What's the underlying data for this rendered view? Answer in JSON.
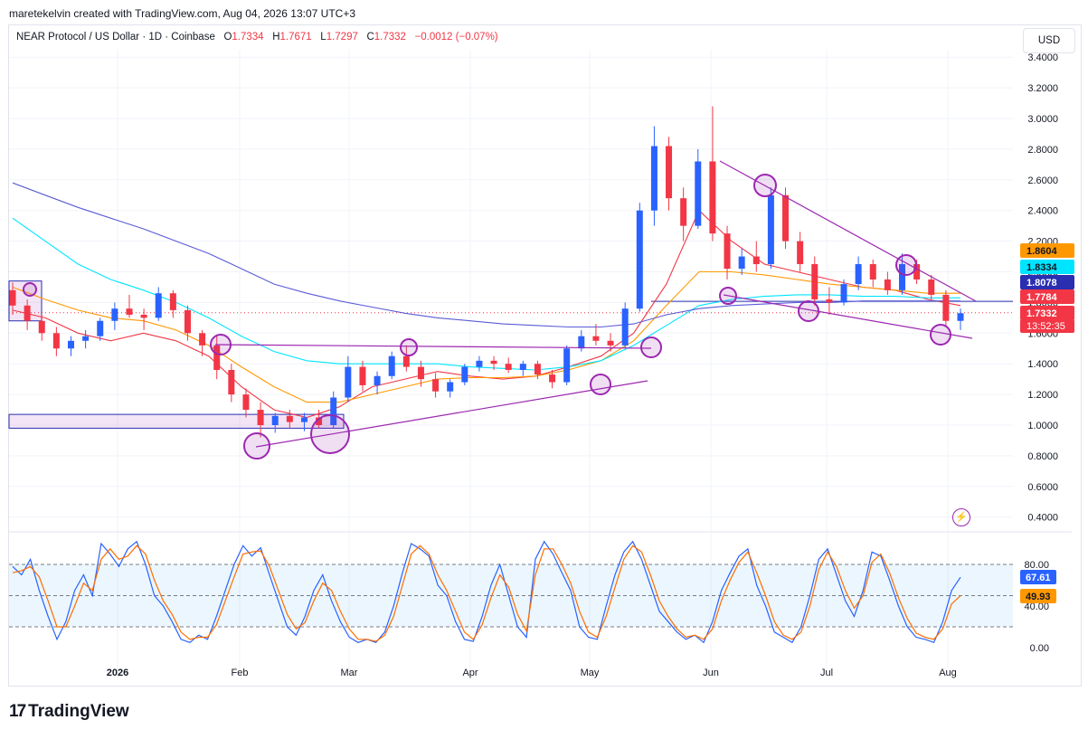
{
  "header": {
    "text": "maretekelvin created with TradingView.com, Aug 04, 2026 13:07 UTC+3"
  },
  "legend": {
    "symbol": "NEAR Protocol / US Dollar · 1D · Coinbase",
    "open_label": "O",
    "open": "1.7334",
    "high_label": "H",
    "high": "1.7671",
    "low_label": "L",
    "low": "1.7297",
    "close_label": "C",
    "close": "1.7332",
    "change": "−0.0012 (−0.07%)"
  },
  "currency_button": "USD",
  "brand": {
    "name": "TradingView",
    "mark": "17"
  },
  "icons": {
    "alert": "lightning-icon",
    "logo": "tradingview-logo-icon"
  },
  "colors": {
    "up": "#2962ff",
    "down": "#f23645",
    "ema_short": "#f23645",
    "ema_mid": "#ff9800",
    "ema_long1": "#00e5ff",
    "ema_long2": "#5b5bd6",
    "annotation": "#9c27b0",
    "stoch_k": "#2962ff",
    "stoch_d": "#ff6d00"
  },
  "chart_data": [
    {
      "type": "candlestick",
      "title": "NEAR Protocol / US Dollar · 1D · Coinbase",
      "y_axis_side": "right",
      "ylim": [
        0.3,
        3.5
      ],
      "y_ticks": [
        "3.4000",
        "3.2000",
        "3.0000",
        "2.8000",
        "2.6000",
        "2.4000",
        "2.2000",
        "2.0000",
        "1.8000",
        "1.6000",
        "1.4000",
        "1.2000",
        "1.0000",
        "0.8000",
        "0.6000",
        "0.4000"
      ],
      "x_ticks": [
        "2026",
        "Feb",
        "Mar",
        "Apr",
        "May",
        "Jun",
        "Jul",
        "Aug"
      ],
      "grid": true,
      "price_labels": [
        {
          "value": "1.8604",
          "color": "#ff9800",
          "text_color": "#131722"
        },
        {
          "value": "1.8334",
          "color": "#00e5ff",
          "text_color": "#131722"
        },
        {
          "value": "1.8078",
          "color": "#2a2eb0",
          "text_color": "#ffffff"
        },
        {
          "value": "1.7784",
          "color": "#f23645",
          "text_color": "#ffffff"
        },
        {
          "value": "1.7332",
          "color": "#f23645",
          "text_color": "#ffffff"
        }
      ],
      "countdown": "13:52:35",
      "key_levels": {
        "support_zone_low": 0.98,
        "support_zone_high": 1.07,
        "resistance_line": 1.8078,
        "current_price": 1.7332
      },
      "series": [
        {
          "name": "",
          "kind": "ema",
          "values_daily_approx": [
            1.75,
            1.7,
            1.6,
            1.55,
            1.6,
            1.55,
            1.45,
            1.25,
            1.1,
            1.05,
            1.12,
            1.25,
            1.3,
            1.35,
            1.32,
            1.3,
            1.32,
            1.38,
            1.45,
            1.6,
            1.92,
            2.4,
            2.2,
            2.05,
            2.0,
            1.95,
            1.9,
            1.88,
            1.82,
            1.78
          ]
        },
        {
          "name": "",
          "kind": "ema",
          "values_daily_approx": [
            1.9,
            1.82,
            1.75,
            1.7,
            1.68,
            1.62,
            1.52,
            1.38,
            1.25,
            1.15,
            1.15,
            1.2,
            1.25,
            1.3,
            1.31,
            1.31,
            1.32,
            1.36,
            1.42,
            1.55,
            1.78,
            2.0,
            2.0,
            1.98,
            1.95,
            1.92,
            1.9,
            1.88,
            1.86,
            1.86
          ]
        },
        {
          "name": "",
          "kind": "ema",
          "values_daily_approx": [
            2.35,
            2.2,
            2.05,
            1.95,
            1.88,
            1.8,
            1.7,
            1.58,
            1.48,
            1.42,
            1.4,
            1.4,
            1.4,
            1.4,
            1.38,
            1.37,
            1.36,
            1.38,
            1.42,
            1.52,
            1.65,
            1.78,
            1.82,
            1.84,
            1.85,
            1.85,
            1.84,
            1.84,
            1.83,
            1.83
          ]
        },
        {
          "name": "",
          "kind": "ema",
          "values_daily_approx": [
            2.58,
            2.5,
            2.42,
            2.35,
            2.28,
            2.2,
            2.12,
            2.02,
            1.92,
            1.86,
            1.81,
            1.77,
            1.73,
            1.7,
            1.68,
            1.66,
            1.65,
            1.64,
            1.64,
            1.66,
            1.72,
            1.76,
            1.78,
            1.79,
            1.8,
            1.8,
            1.81,
            1.81,
            1.81,
            1.81
          ]
        }
      ],
      "ohlc_approx": [
        [
          1.88,
          1.93,
          1.72,
          1.78
        ],
        [
          1.78,
          1.82,
          1.62,
          1.68
        ],
        [
          1.68,
          1.72,
          1.55,
          1.6
        ],
        [
          1.6,
          1.64,
          1.45,
          1.5
        ],
        [
          1.5,
          1.58,
          1.45,
          1.55
        ],
        [
          1.55,
          1.62,
          1.5,
          1.58
        ],
        [
          1.58,
          1.7,
          1.55,
          1.68
        ],
        [
          1.68,
          1.8,
          1.62,
          1.76
        ],
        [
          1.76,
          1.85,
          1.7,
          1.72
        ],
        [
          1.72,
          1.76,
          1.62,
          1.7
        ],
        [
          1.7,
          1.9,
          1.68,
          1.86
        ],
        [
          1.86,
          1.88,
          1.7,
          1.75
        ],
        [
          1.75,
          1.78,
          1.55,
          1.6
        ],
        [
          1.6,
          1.62,
          1.45,
          1.52
        ],
        [
          1.52,
          1.58,
          1.3,
          1.36
        ],
        [
          1.36,
          1.4,
          1.15,
          1.2
        ],
        [
          1.2,
          1.24,
          1.05,
          1.1
        ],
        [
          1.1,
          1.15,
          0.92,
          1.0
        ],
        [
          1.0,
          1.08,
          0.95,
          1.06
        ],
        [
          1.06,
          1.1,
          0.98,
          1.02
        ],
        [
          1.02,
          1.08,
          0.96,
          1.05
        ],
        [
          1.05,
          1.1,
          0.98,
          1.0
        ],
        [
          1.0,
          1.22,
          0.98,
          1.18
        ],
        [
          1.18,
          1.45,
          1.15,
          1.38
        ],
        [
          1.38,
          1.42,
          1.22,
          1.26
        ],
        [
          1.26,
          1.35,
          1.2,
          1.32
        ],
        [
          1.32,
          1.48,
          1.3,
          1.45
        ],
        [
          1.45,
          1.52,
          1.35,
          1.38
        ],
        [
          1.38,
          1.42,
          1.25,
          1.3
        ],
        [
          1.3,
          1.34,
          1.18,
          1.22
        ],
        [
          1.22,
          1.3,
          1.18,
          1.28
        ],
        [
          1.28,
          1.4,
          1.26,
          1.38
        ],
        [
          1.38,
          1.45,
          1.35,
          1.42
        ],
        [
          1.42,
          1.45,
          1.36,
          1.4
        ],
        [
          1.4,
          1.44,
          1.34,
          1.36
        ],
        [
          1.36,
          1.42,
          1.32,
          1.4
        ],
        [
          1.4,
          1.42,
          1.3,
          1.33
        ],
        [
          1.33,
          1.36,
          1.24,
          1.28
        ],
        [
          1.28,
          1.52,
          1.26,
          1.5
        ],
        [
          1.5,
          1.62,
          1.48,
          1.58
        ],
        [
          1.58,
          1.66,
          1.52,
          1.55
        ],
        [
          1.55,
          1.6,
          1.48,
          1.52
        ],
        [
          1.52,
          1.8,
          1.5,
          1.76
        ],
        [
          1.76,
          2.45,
          1.74,
          2.4
        ],
        [
          2.4,
          2.95,
          2.3,
          2.82
        ],
        [
          2.82,
          2.88,
          2.4,
          2.48
        ],
        [
          2.48,
          2.55,
          2.2,
          2.3
        ],
        [
          2.3,
          2.8,
          2.28,
          2.72
        ],
        [
          2.72,
          3.08,
          2.2,
          2.25
        ],
        [
          2.25,
          2.3,
          1.95,
          2.02
        ],
        [
          2.02,
          2.15,
          1.98,
          2.1
        ],
        [
          2.1,
          2.2,
          2.0,
          2.05
        ],
        [
          2.05,
          2.55,
          2.02,
          2.5
        ],
        [
          2.5,
          2.55,
          2.15,
          2.2
        ],
        [
          2.2,
          2.26,
          2.0,
          2.05
        ],
        [
          2.05,
          2.1,
          1.78,
          1.82
        ],
        [
          1.82,
          1.9,
          1.72,
          1.8
        ],
        [
          1.8,
          1.95,
          1.78,
          1.92
        ],
        [
          1.92,
          2.1,
          1.88,
          2.05
        ],
        [
          2.05,
          2.08,
          1.9,
          1.95
        ],
        [
          1.95,
          2.0,
          1.85,
          1.88
        ],
        [
          1.88,
          2.12,
          1.85,
          2.05
        ],
        [
          2.05,
          2.08,
          1.92,
          1.95
        ],
        [
          1.95,
          1.98,
          1.82,
          1.85
        ],
        [
          1.85,
          1.88,
          1.64,
          1.68
        ],
        [
          1.68,
          1.76,
          1.62,
          1.73
        ]
      ],
      "annotations": [
        {
          "kind": "trendline",
          "label": "rising support",
          "from": [
            "Feb",
            0.85
          ],
          "to": [
            "May",
            1.29
          ]
        },
        {
          "kind": "trendline",
          "label": "resistance",
          "from": [
            "Jan end",
            1.53
          ],
          "to": [
            "May",
            1.48
          ]
        },
        {
          "kind": "trendline",
          "label": "descending resistance",
          "from": [
            "Jun",
            2.73
          ],
          "to": [
            "Aug",
            1.83
          ]
        },
        {
          "kind": "trendline",
          "label": "descending support",
          "from": [
            "Jun",
            1.84
          ],
          "to": [
            "Aug",
            1.56
          ]
        }
      ]
    },
    {
      "type": "line",
      "title": "",
      "ylim": [
        -5,
        105
      ],
      "y_ticks": [
        "80.00",
        "40.00",
        "0.00"
      ],
      "band": [
        20,
        80
      ],
      "mid": 50,
      "series": [
        {
          "name": "",
          "last": "67.61",
          "values": [
            78,
            70,
            85,
            55,
            30,
            8,
            25,
            55,
            70,
            50,
            100,
            90,
            78,
            95,
            102,
            80,
            50,
            40,
            25,
            8,
            5,
            12,
            8,
            30,
            55,
            80,
            98,
            88,
            96,
            70,
            45,
            20,
            12,
            30,
            55,
            70,
            45,
            25,
            10,
            5,
            8,
            5,
            15,
            40,
            72,
            100,
            95,
            88,
            60,
            50,
            25,
            8,
            6,
            30,
            60,
            80,
            50,
            20,
            10,
            85,
            102,
            90,
            72,
            55,
            20,
            10,
            8,
            40,
            70,
            92,
            102,
            85,
            60,
            35,
            25,
            15,
            8,
            12,
            5,
            25,
            55,
            72,
            88,
            95,
            60,
            40,
            15,
            10,
            5,
            20,
            50,
            85,
            95,
            70,
            45,
            30,
            55,
            92,
            88,
            65,
            40,
            20,
            10,
            8,
            5,
            25,
            55,
            67.61
          ]
        },
        {
          "name": "",
          "last": "49.93",
          "values": [
            72,
            74,
            78,
            68,
            45,
            20,
            20,
            40,
            62,
            55,
            85,
            95,
            85,
            88,
            98,
            90,
            65,
            45,
            32,
            15,
            8,
            10,
            10,
            22,
            45,
            68,
            90,
            92,
            93,
            78,
            55,
            32,
            18,
            24,
            45,
            62,
            55,
            35,
            18,
            8,
            8,
            6,
            12,
            30,
            60,
            90,
            98,
            90,
            70,
            55,
            35,
            15,
            8,
            22,
            48,
            70,
            58,
            32,
            16,
            70,
            95,
            95,
            80,
            62,
            35,
            15,
            10,
            30,
            58,
            85,
            98,
            92,
            70,
            45,
            30,
            18,
            10,
            12,
            8,
            18,
            45,
            65,
            82,
            92,
            72,
            50,
            25,
            12,
            8,
            15,
            40,
            75,
            92,
            78,
            55,
            38,
            50,
            82,
            90,
            72,
            48,
            28,
            14,
            10,
            8,
            18,
            42,
            49.93
          ]
        }
      ]
    }
  ]
}
